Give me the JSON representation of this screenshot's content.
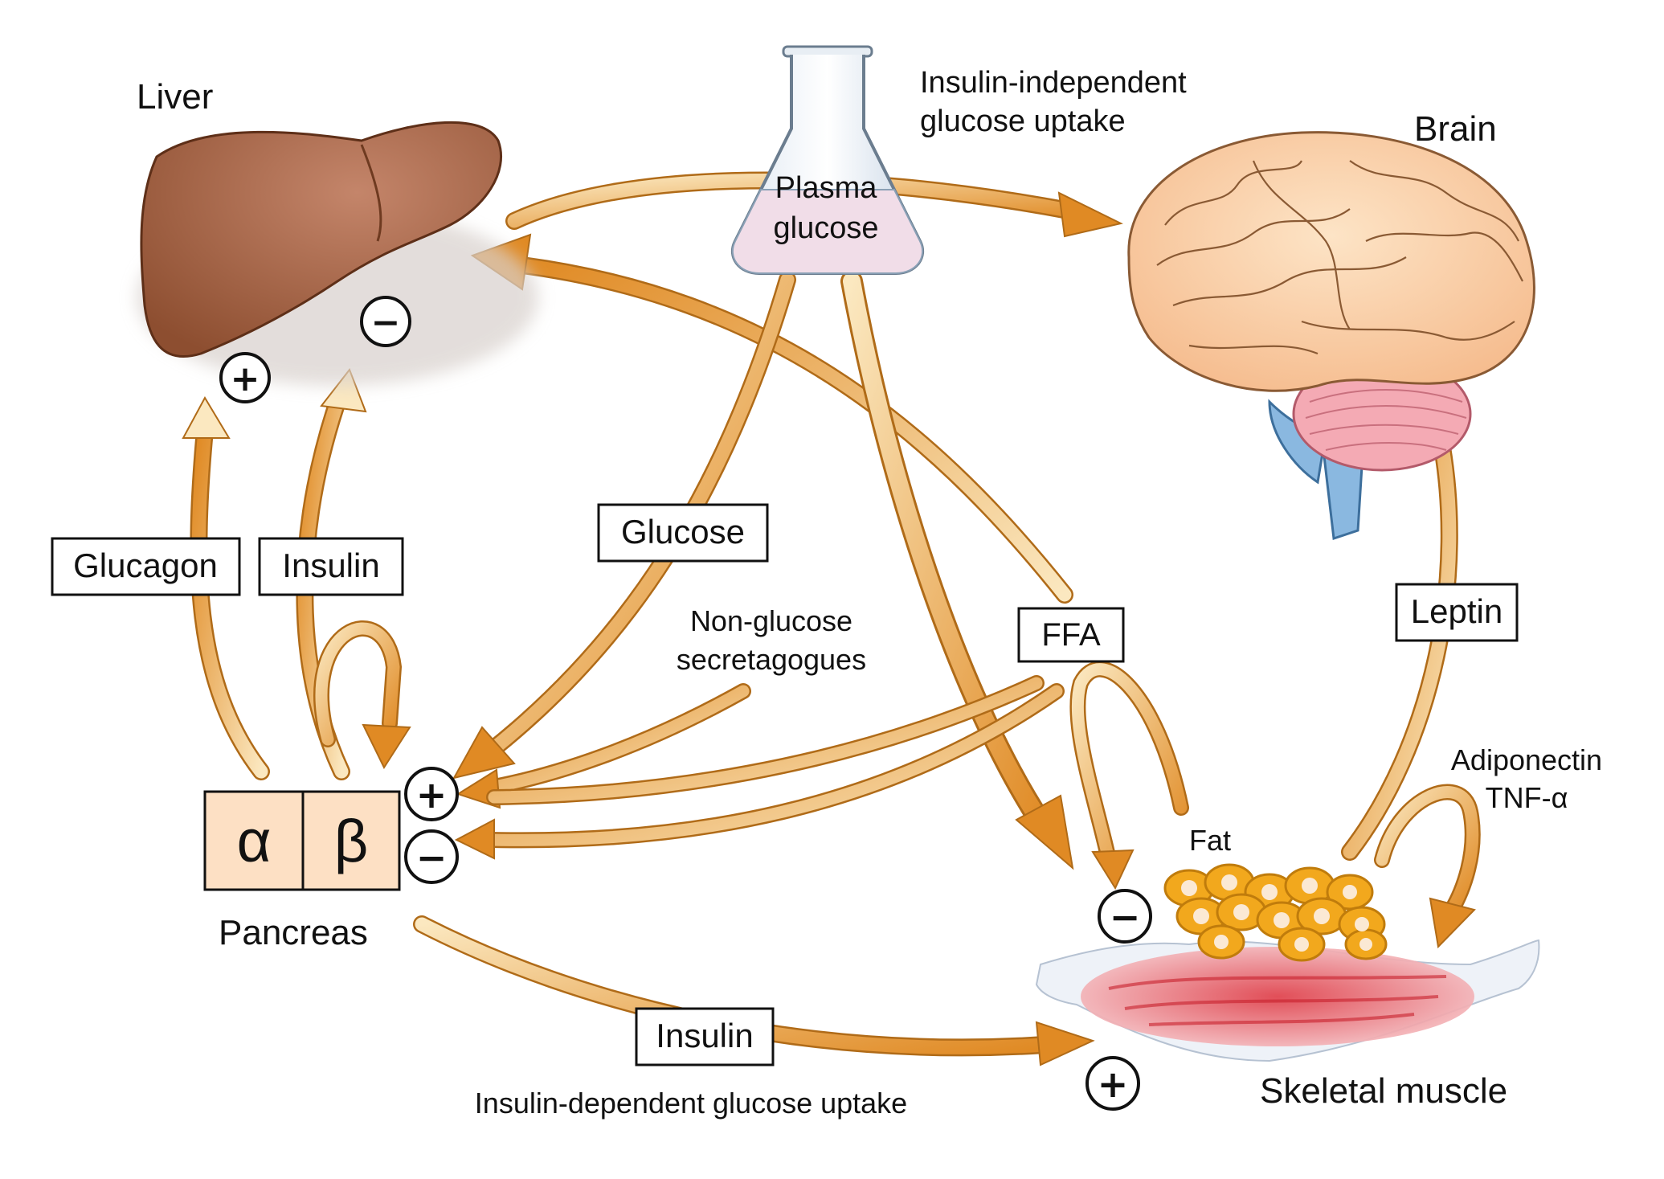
{
  "organs": {
    "liver": "Liver",
    "brain": "Brain",
    "pancreas": "Pancreas",
    "skeletal_muscle": "Skeletal muscle",
    "fat": "Fat",
    "plasma_glucose_line1": "Plasma",
    "plasma_glucose_line2": "glucose"
  },
  "pancreas_cells": {
    "alpha": "α",
    "beta": "β"
  },
  "boxed_labels": {
    "glucagon": "Glucagon",
    "insulin_liver": "Insulin",
    "glucose": "Glucose",
    "ffa": "FFA",
    "leptin": "Leptin",
    "insulin_muscle": "Insulin"
  },
  "annotations": {
    "insulin_independent_line1": "Insulin-independent",
    "insulin_independent_line2": "glucose uptake",
    "insulin_dependent": "Insulin-dependent glucose uptake",
    "non_glucose_line1": "Non-glucose",
    "non_glucose_line2": "secretagogues",
    "adiponectin": "Adiponectin",
    "tnf": "TNF-α"
  },
  "signs": {
    "plus": "+",
    "minus": "−"
  },
  "colors": {
    "liver": "#9a5b3c",
    "arrow_dark": "#d97f1f",
    "arrow_light": "#f9e3b4",
    "brain": "#fcd4a8",
    "cerebellum": "#f4aab4",
    "brainstem": "#8ab8e0",
    "pancreas_box": "#fde0c4",
    "fat": "#f2a81d",
    "muscle": "#e0404a",
    "flask_liquid": "#f1dde8"
  }
}
